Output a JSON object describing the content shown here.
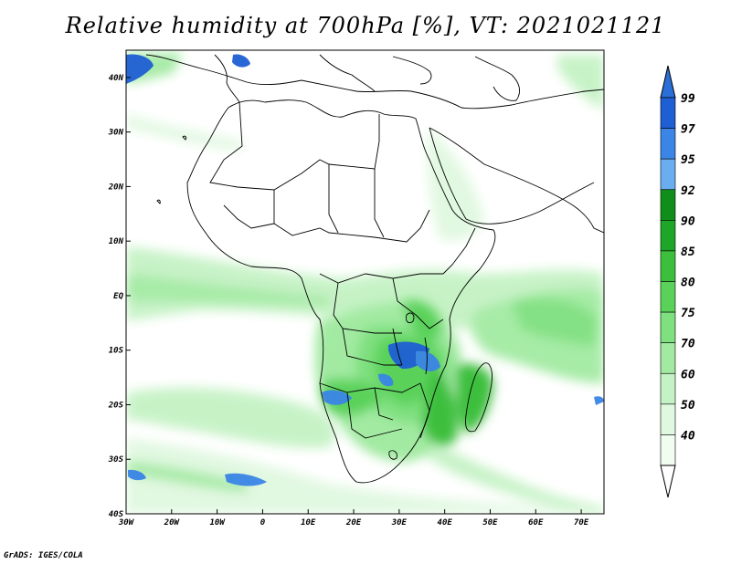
{
  "title": "Relative humidity at 700hPa [%], VT: 2021021121",
  "credit": "GrADS: IGES/COLA",
  "map": {
    "region": "Africa",
    "lon_range": [
      -30,
      75
    ],
    "lat_range": [
      -40,
      45
    ],
    "lon_ticks": [
      "30W",
      "20W",
      "10W",
      "0",
      "10E",
      "20E",
      "30E",
      "40E",
      "50E",
      "60E",
      "70E"
    ],
    "lat_ticks": [
      "40N",
      "30N",
      "20N",
      "10N",
      "EQ",
      "10S",
      "20S",
      "30S",
      "40S"
    ],
    "field": "Relative humidity",
    "level": "700hPa",
    "units": "%",
    "valid_time": "2021021121"
  },
  "colorbar": {
    "labels": [
      "99",
      "97",
      "95",
      "92",
      "90",
      "85",
      "80",
      "75",
      "70",
      "60",
      "50",
      "40"
    ],
    "colors": [
      "#1f5fd4",
      "#3a85e6",
      "#6aaef0",
      "#0f8f1a",
      "#1ea628",
      "#3cbf3c",
      "#5ad25a",
      "#7fe07f",
      "#a2eaa2",
      "#c4f2c4",
      "#e0f8e0",
      "#f2fdf2"
    ],
    "arrow_top_color": "#2a6fd8",
    "arrow_bottom_color": "#ffffff"
  }
}
